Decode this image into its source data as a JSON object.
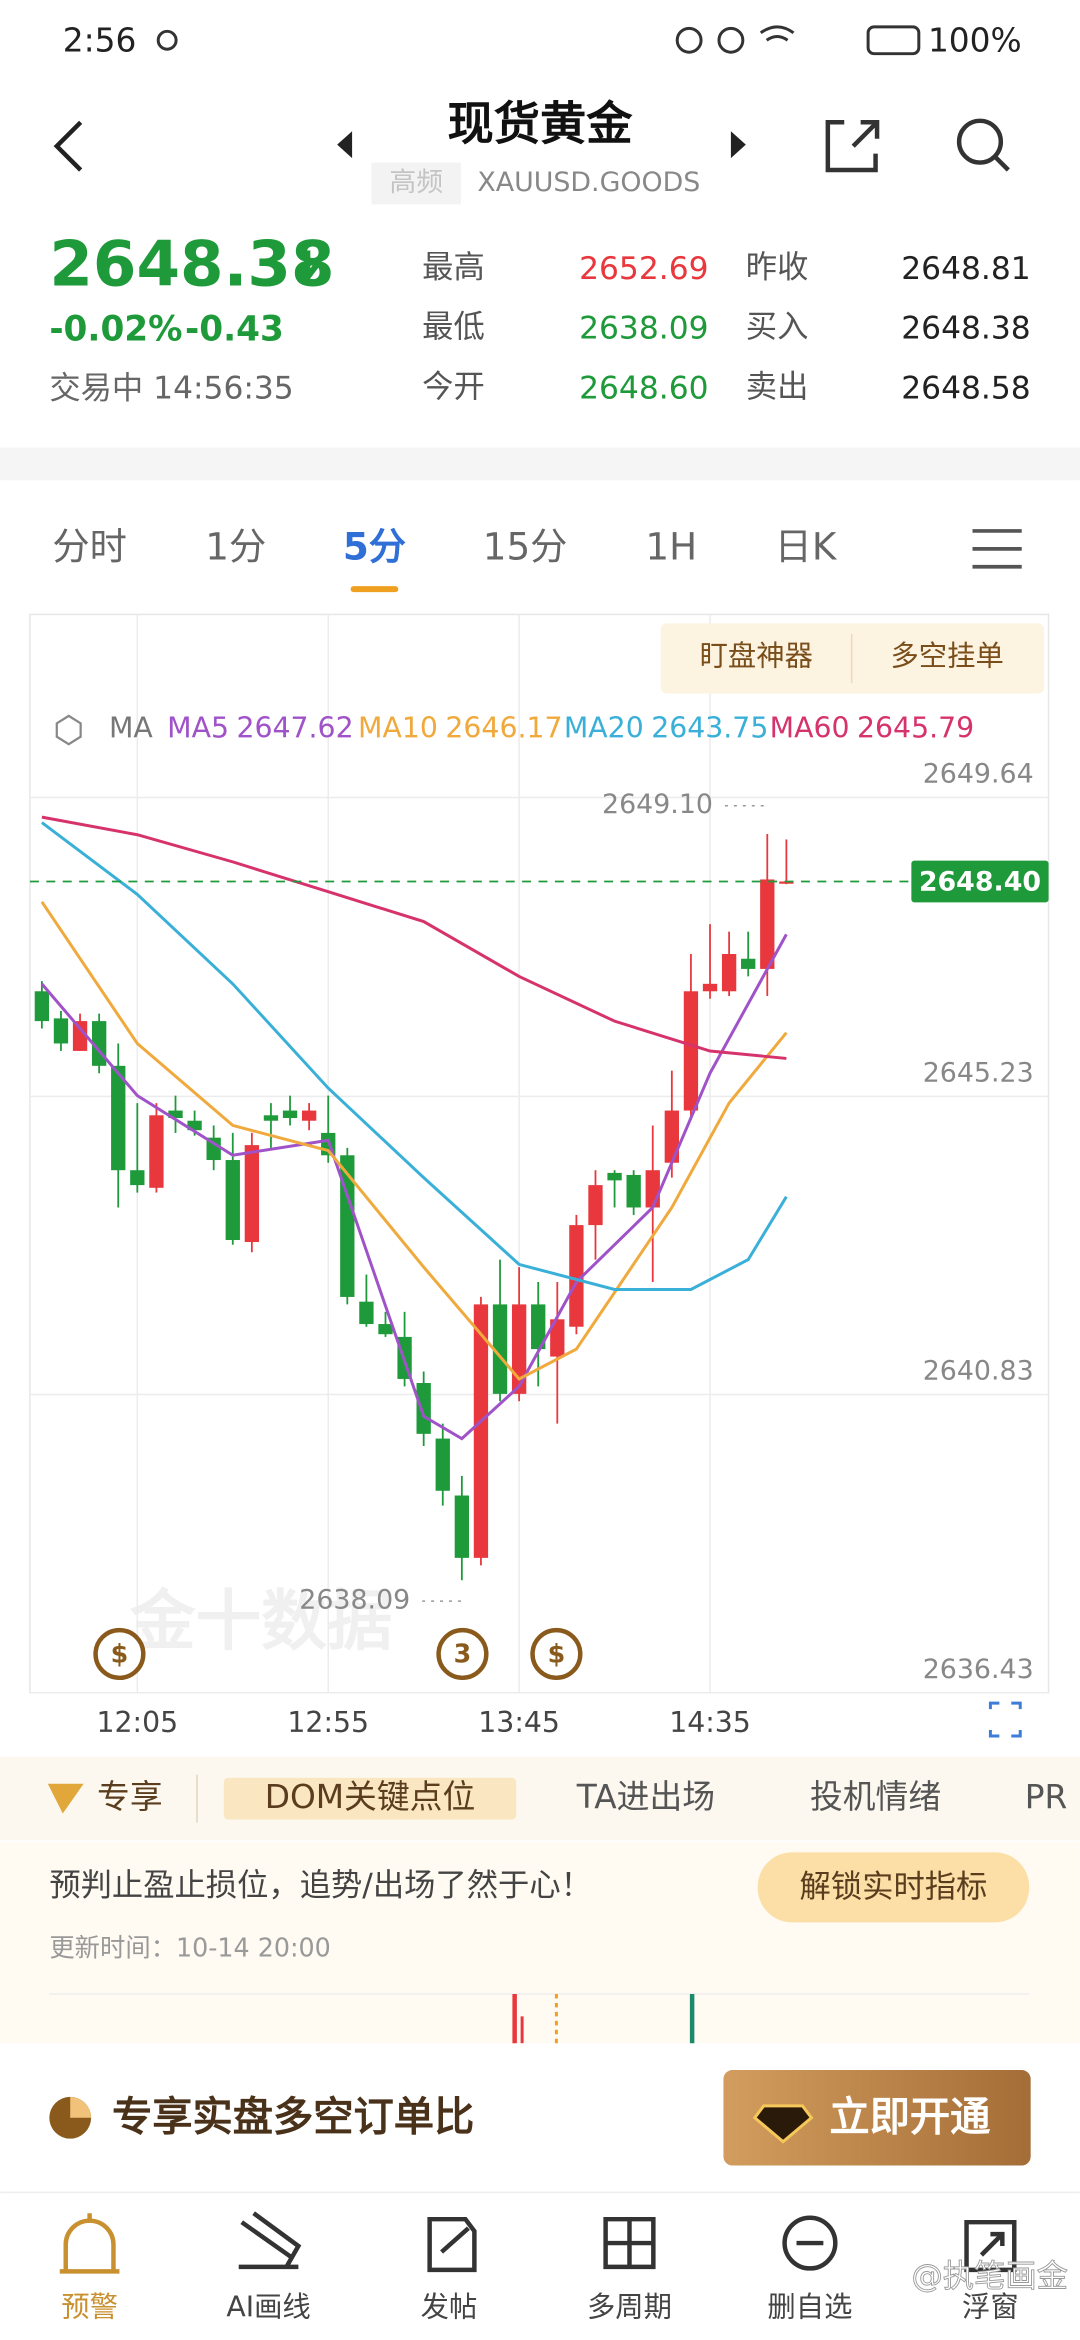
{
  "status_bar": {
    "time": "2:56",
    "battery": "100%"
  },
  "header": {
    "title": "现货黄金",
    "tag": "高频",
    "code": "XAUUSD.GOODS"
  },
  "quote": {
    "price": "2648.38",
    "change_pct": "-0.02%",
    "change": "-0.43",
    "status": "交易中 14:56:35",
    "stats": [
      {
        "label": "最高",
        "value": "2652.69"
      },
      {
        "label": "最低",
        "value": "2638.09"
      },
      {
        "label": "今开",
        "value": "2648.60"
      },
      {
        "label": "昨收",
        "value": "2648.81"
      },
      {
        "label": "买入",
        "value": "2648.38"
      },
      {
        "label": "卖出",
        "value": "2648.58"
      }
    ]
  },
  "tabs": [
    "分时",
    "1分",
    "5分",
    "15分",
    "1H",
    "日K"
  ],
  "chart_buttons": [
    "盯盘神器",
    "多空挂单"
  ],
  "chart_data": {
    "type": "candlestick",
    "indicator": "MA",
    "watermark": "金十数据",
    "up_color": "#e8383d",
    "down_color": "#1f9a3a",
    "ylim": [
      2636.43,
      2652.34
    ],
    "yticks": [
      2649.64,
      2645.23,
      2640.83,
      2636.43
    ],
    "grid": true,
    "categories": [
      null,
      null,
      null,
      null,
      null,
      "12:05",
      null,
      null,
      null,
      null,
      null,
      null,
      null,
      null,
      null,
      "12:55",
      null,
      null,
      null,
      null,
      null,
      null,
      null,
      null,
      null,
      "13:45",
      null,
      null,
      null,
      null,
      null,
      null,
      null,
      null,
      null,
      "14:35",
      null,
      null,
      null,
      null
    ],
    "open": [
      2646.78,
      2646.38,
      2645.9,
      2646.34,
      2645.68,
      2644.14,
      2643.88,
      2645.02,
      2644.87,
      2644.62,
      2644.29,
      2643.08,
      2644.95,
      2645.02,
      2644.87,
      2644.69,
      2644.36,
      2642.2,
      2641.87,
      2641.68,
      2641.0,
      2640.18,
      2639.34,
      2638.42,
      2642.16,
      2640.84,
      2642.16,
      2641.39,
      2641.83,
      2643.33,
      2644.1,
      2644.07,
      2643.59,
      2644.25,
      2645.02,
      2646.78,
      2646.78,
      2647.26,
      2647.11,
      2648.38
    ],
    "high": [
      2646.93,
      2646.49,
      2646.45,
      2646.45,
      2646.01,
      2645.13,
      2645.13,
      2645.24,
      2645.02,
      2644.8,
      2644.69,
      2644.69,
      2645.13,
      2645.24,
      2645.13,
      2645.24,
      2644.47,
      2642.6,
      2642.05,
      2642.05,
      2641.17,
      2640.4,
      2639.63,
      2642.27,
      2642.82,
      2642.71,
      2642.49,
      2642.49,
      2643.48,
      2644.14,
      2644.14,
      2644.14,
      2644.8,
      2645.61,
      2647.33,
      2647.77,
      2647.66,
      2647.66,
      2649.1,
      2649.02
    ],
    "low": [
      2646.23,
      2645.9,
      2645.9,
      2645.57,
      2643.59,
      2643.81,
      2643.81,
      2644.69,
      2644.65,
      2644.14,
      2643.04,
      2642.93,
      2644.47,
      2644.8,
      2644.73,
      2644.25,
      2642.16,
      2641.83,
      2641.68,
      2640.95,
      2640.07,
      2639.19,
      2638.09,
      2638.31,
      2640.73,
      2640.73,
      2640.95,
      2640.4,
      2641.72,
      2642.82,
      2643.59,
      2643.48,
      2642.49,
      2644.03,
      2644.91,
      2646.67,
      2646.71,
      2647.0,
      2646.71,
      2648.36
    ],
    "close": [
      2646.34,
      2646.01,
      2646.34,
      2645.68,
      2644.14,
      2643.92,
      2644.95,
      2644.91,
      2644.73,
      2644.29,
      2643.11,
      2644.51,
      2644.87,
      2644.91,
      2645.02,
      2644.36,
      2642.27,
      2641.87,
      2641.72,
      2641.06,
      2640.25,
      2639.41,
      2638.42,
      2642.16,
      2640.84,
      2642.16,
      2641.5,
      2641.94,
      2643.33,
      2643.92,
      2643.99,
      2643.59,
      2644.14,
      2645.02,
      2646.78,
      2646.89,
      2647.33,
      2647.11,
      2648.43,
      2648.4
    ],
    "series": [
      {
        "name": "MA5",
        "color": "#a052c8",
        "value": 2647.62,
        "x": [
          0,
          5,
          10,
          15,
          20,
          22,
          25,
          28,
          32,
          35,
          39
        ],
        "values": [
          2646.89,
          2645.24,
          2644.36,
          2644.58,
          2640.51,
          2640.18,
          2640.95,
          2642.49,
          2643.59,
          2645.57,
          2647.62
        ]
      },
      {
        "name": "MA10",
        "color": "#f0a93c",
        "value": 2646.17,
        "x": [
          0,
          5,
          10,
          15,
          20,
          25,
          28,
          33,
          36,
          39
        ],
        "values": [
          2648.1,
          2646.01,
          2644.8,
          2644.43,
          2642.71,
          2641.06,
          2641.5,
          2643.59,
          2645.13,
          2646.17
        ]
      },
      {
        "name": "MA20",
        "color": "#3ab0d8",
        "value": 2643.75,
        "x": [
          0,
          5,
          10,
          15,
          20,
          25,
          30,
          34,
          37,
          39
        ],
        "values": [
          2649.27,
          2648.21,
          2646.89,
          2645.35,
          2644.03,
          2642.75,
          2642.38,
          2642.38,
          2642.82,
          2643.75
        ]
      },
      {
        "name": "MA60",
        "color": "#d6336c",
        "value": 2645.79,
        "x": [
          0,
          5,
          10,
          15,
          20,
          25,
          30,
          35,
          39
        ],
        "values": [
          2649.35,
          2649.09,
          2648.69,
          2648.25,
          2647.81,
          2647.0,
          2646.34,
          2645.9,
          2645.79
        ]
      }
    ],
    "high_label": {
      "value": 2649.1,
      "label": "2649.10"
    },
    "low_label": 2638.09,
    "last_price": {
      "value": 2648.4,
      "label": "2648.40"
    },
    "event_labels": [
      "$",
      "3",
      "$"
    ]
  },
  "feature_tabs": [
    "专享",
    "DOM关键点位",
    "TA进出场",
    "投机情绪",
    "PR"
  ],
  "promo": {
    "text": "预判止盈止损位，追势/出场了然于心！",
    "button": "解锁实时指标",
    "updated": "更新时间：10-14 20:00"
  },
  "banner": {
    "text": "专享实盘多空订单比",
    "button": "立即开通"
  },
  "nav": [
    "预警",
    "AI画线",
    "发帖",
    "多周期",
    "删自选",
    "浮窗"
  ],
  "watermark": "@执笔画金"
}
